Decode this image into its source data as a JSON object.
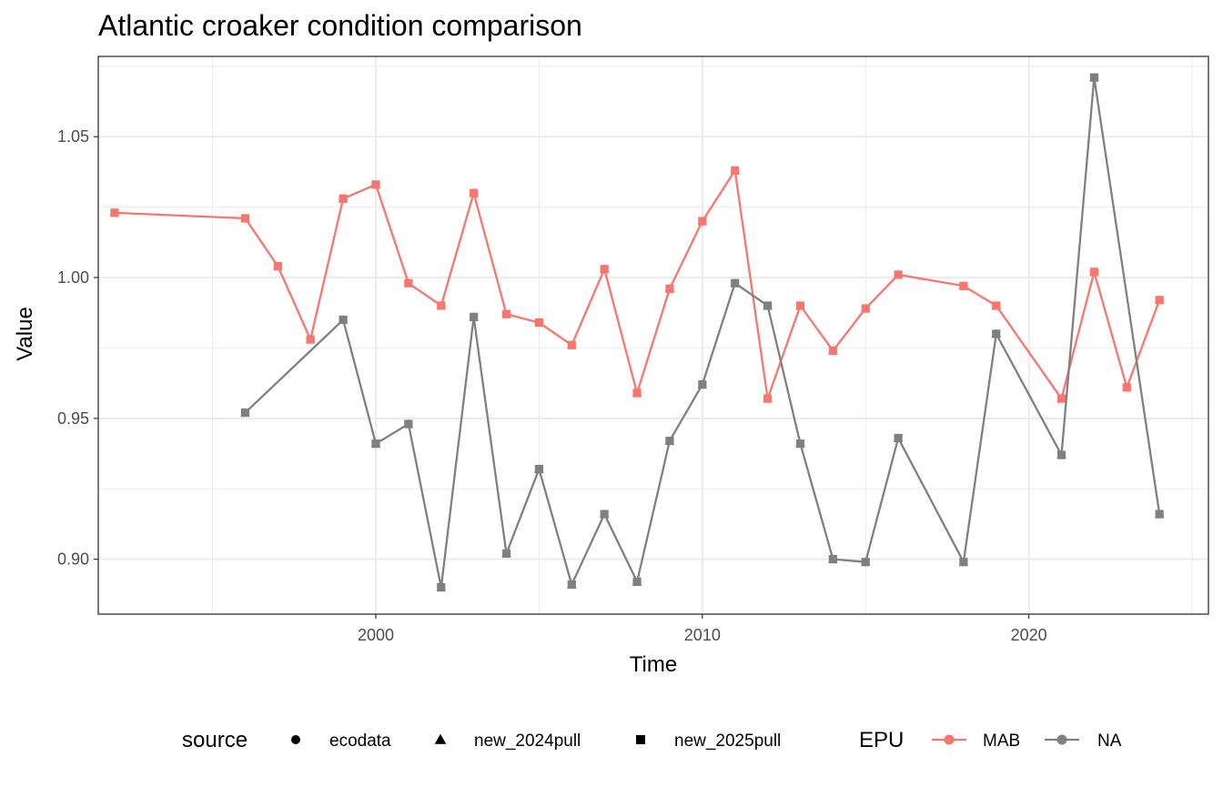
{
  "chart_data": {
    "type": "line",
    "title": "Atlantic croaker condition comparison",
    "xlabel": "Time",
    "ylabel": "Value",
    "xlim": [
      1991.5,
      2025.5
    ],
    "ylim": [
      0.8805,
      1.0785
    ],
    "x_ticks": [
      2000,
      2010,
      2020
    ],
    "x_tick_labels": [
      "2000",
      "2010",
      "2020"
    ],
    "y_ticks": [
      0.9,
      0.95,
      1.0,
      1.05
    ],
    "y_tick_labels": [
      "0.90",
      "0.95",
      "1.00",
      "1.05"
    ],
    "grid": true,
    "legend_position": "bottom",
    "source_legend": {
      "title": "source",
      "items": [
        {
          "label": "ecodata",
          "shape": "circle"
        },
        {
          "label": "new_2024pull",
          "shape": "triangle"
        },
        {
          "label": "new_2025pull",
          "shape": "square"
        }
      ]
    },
    "epu_legend": {
      "title": "EPU",
      "items": [
        {
          "label": "MAB",
          "color": "#F8766D"
        },
        {
          "label": "NA",
          "color": "#808080"
        }
      ]
    },
    "series": [
      {
        "name": "MAB",
        "color": "#F8766D",
        "x": [
          1992,
          1996,
          1997,
          1998,
          1999,
          2000,
          2001,
          2002,
          2003,
          2004,
          2005,
          2006,
          2007,
          2008,
          2009,
          2010,
          2011,
          2012,
          2013,
          2014,
          2015,
          2016,
          2018,
          2019,
          2021,
          2022,
          2023,
          2024
        ],
        "y": [
          1.023,
          1.021,
          1.004,
          0.978,
          1.028,
          1.033,
          0.998,
          0.99,
          1.03,
          0.987,
          0.984,
          0.976,
          1.003,
          0.959,
          0.996,
          1.02,
          1.038,
          0.957,
          0.99,
          0.974,
          0.989,
          1.001,
          0.997,
          0.99,
          0.957,
          1.002,
          0.961,
          0.992
        ]
      },
      {
        "name": "NA",
        "color": "#808080",
        "x": [
          1996,
          1999,
          2000,
          2001,
          2002,
          2003,
          2004,
          2005,
          2006,
          2007,
          2008,
          2009,
          2010,
          2011,
          2012,
          2013,
          2014,
          2015,
          2016,
          2018,
          2019,
          2021,
          2022,
          2024
        ],
        "y": [
          0.952,
          0.985,
          0.941,
          0.948,
          0.89,
          0.986,
          0.902,
          0.932,
          0.891,
          0.916,
          0.892,
          0.942,
          0.962,
          0.998,
          0.99,
          0.941,
          0.9,
          0.899,
          0.943,
          0.899,
          0.98,
          0.937,
          1.071,
          0.916
        ]
      }
    ]
  }
}
